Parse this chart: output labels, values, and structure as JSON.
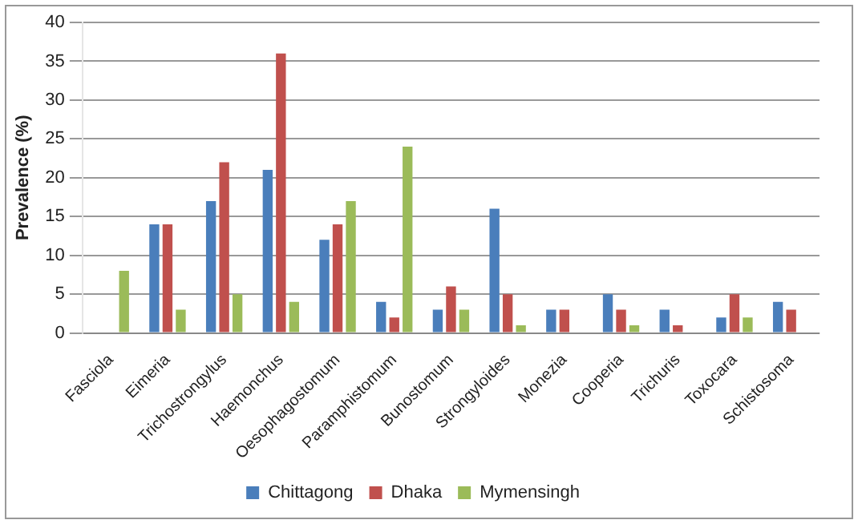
{
  "chart_data": {
    "type": "bar",
    "ylabel": "Prevalence (%)",
    "categories": [
      "Fasciola",
      "Eimeria",
      "Trichostrongylus",
      "Haemonchus",
      "Oesophagostomum",
      "Paramphistomum",
      "Bunostomum",
      "Strongyloides",
      "Monezia",
      "Cooperia",
      "Trichuris",
      "Toxocara",
      "Schistosoma"
    ],
    "series": [
      {
        "name": "Chittagong",
        "color": "#4a7ebb",
        "values": [
          0,
          14,
          17,
          21,
          12,
          4,
          3,
          16,
          3,
          5,
          3,
          2,
          4
        ]
      },
      {
        "name": "Dhaka",
        "color": "#c0504d",
        "values": [
          0,
          14,
          22,
          36,
          14,
          2,
          6,
          5,
          3,
          3,
          1,
          5,
          3
        ]
      },
      {
        "name": "Mymensingh",
        "color": "#9bbb59",
        "values": [
          8,
          3,
          5,
          4,
          17,
          24,
          3,
          1,
          0,
          1,
          0,
          2,
          0
        ]
      }
    ],
    "ylim": [
      0,
      40
    ],
    "yticks": [
      0,
      5,
      10,
      15,
      20,
      25,
      30,
      35,
      40
    ],
    "grid": "y",
    "legend": "bottom"
  }
}
